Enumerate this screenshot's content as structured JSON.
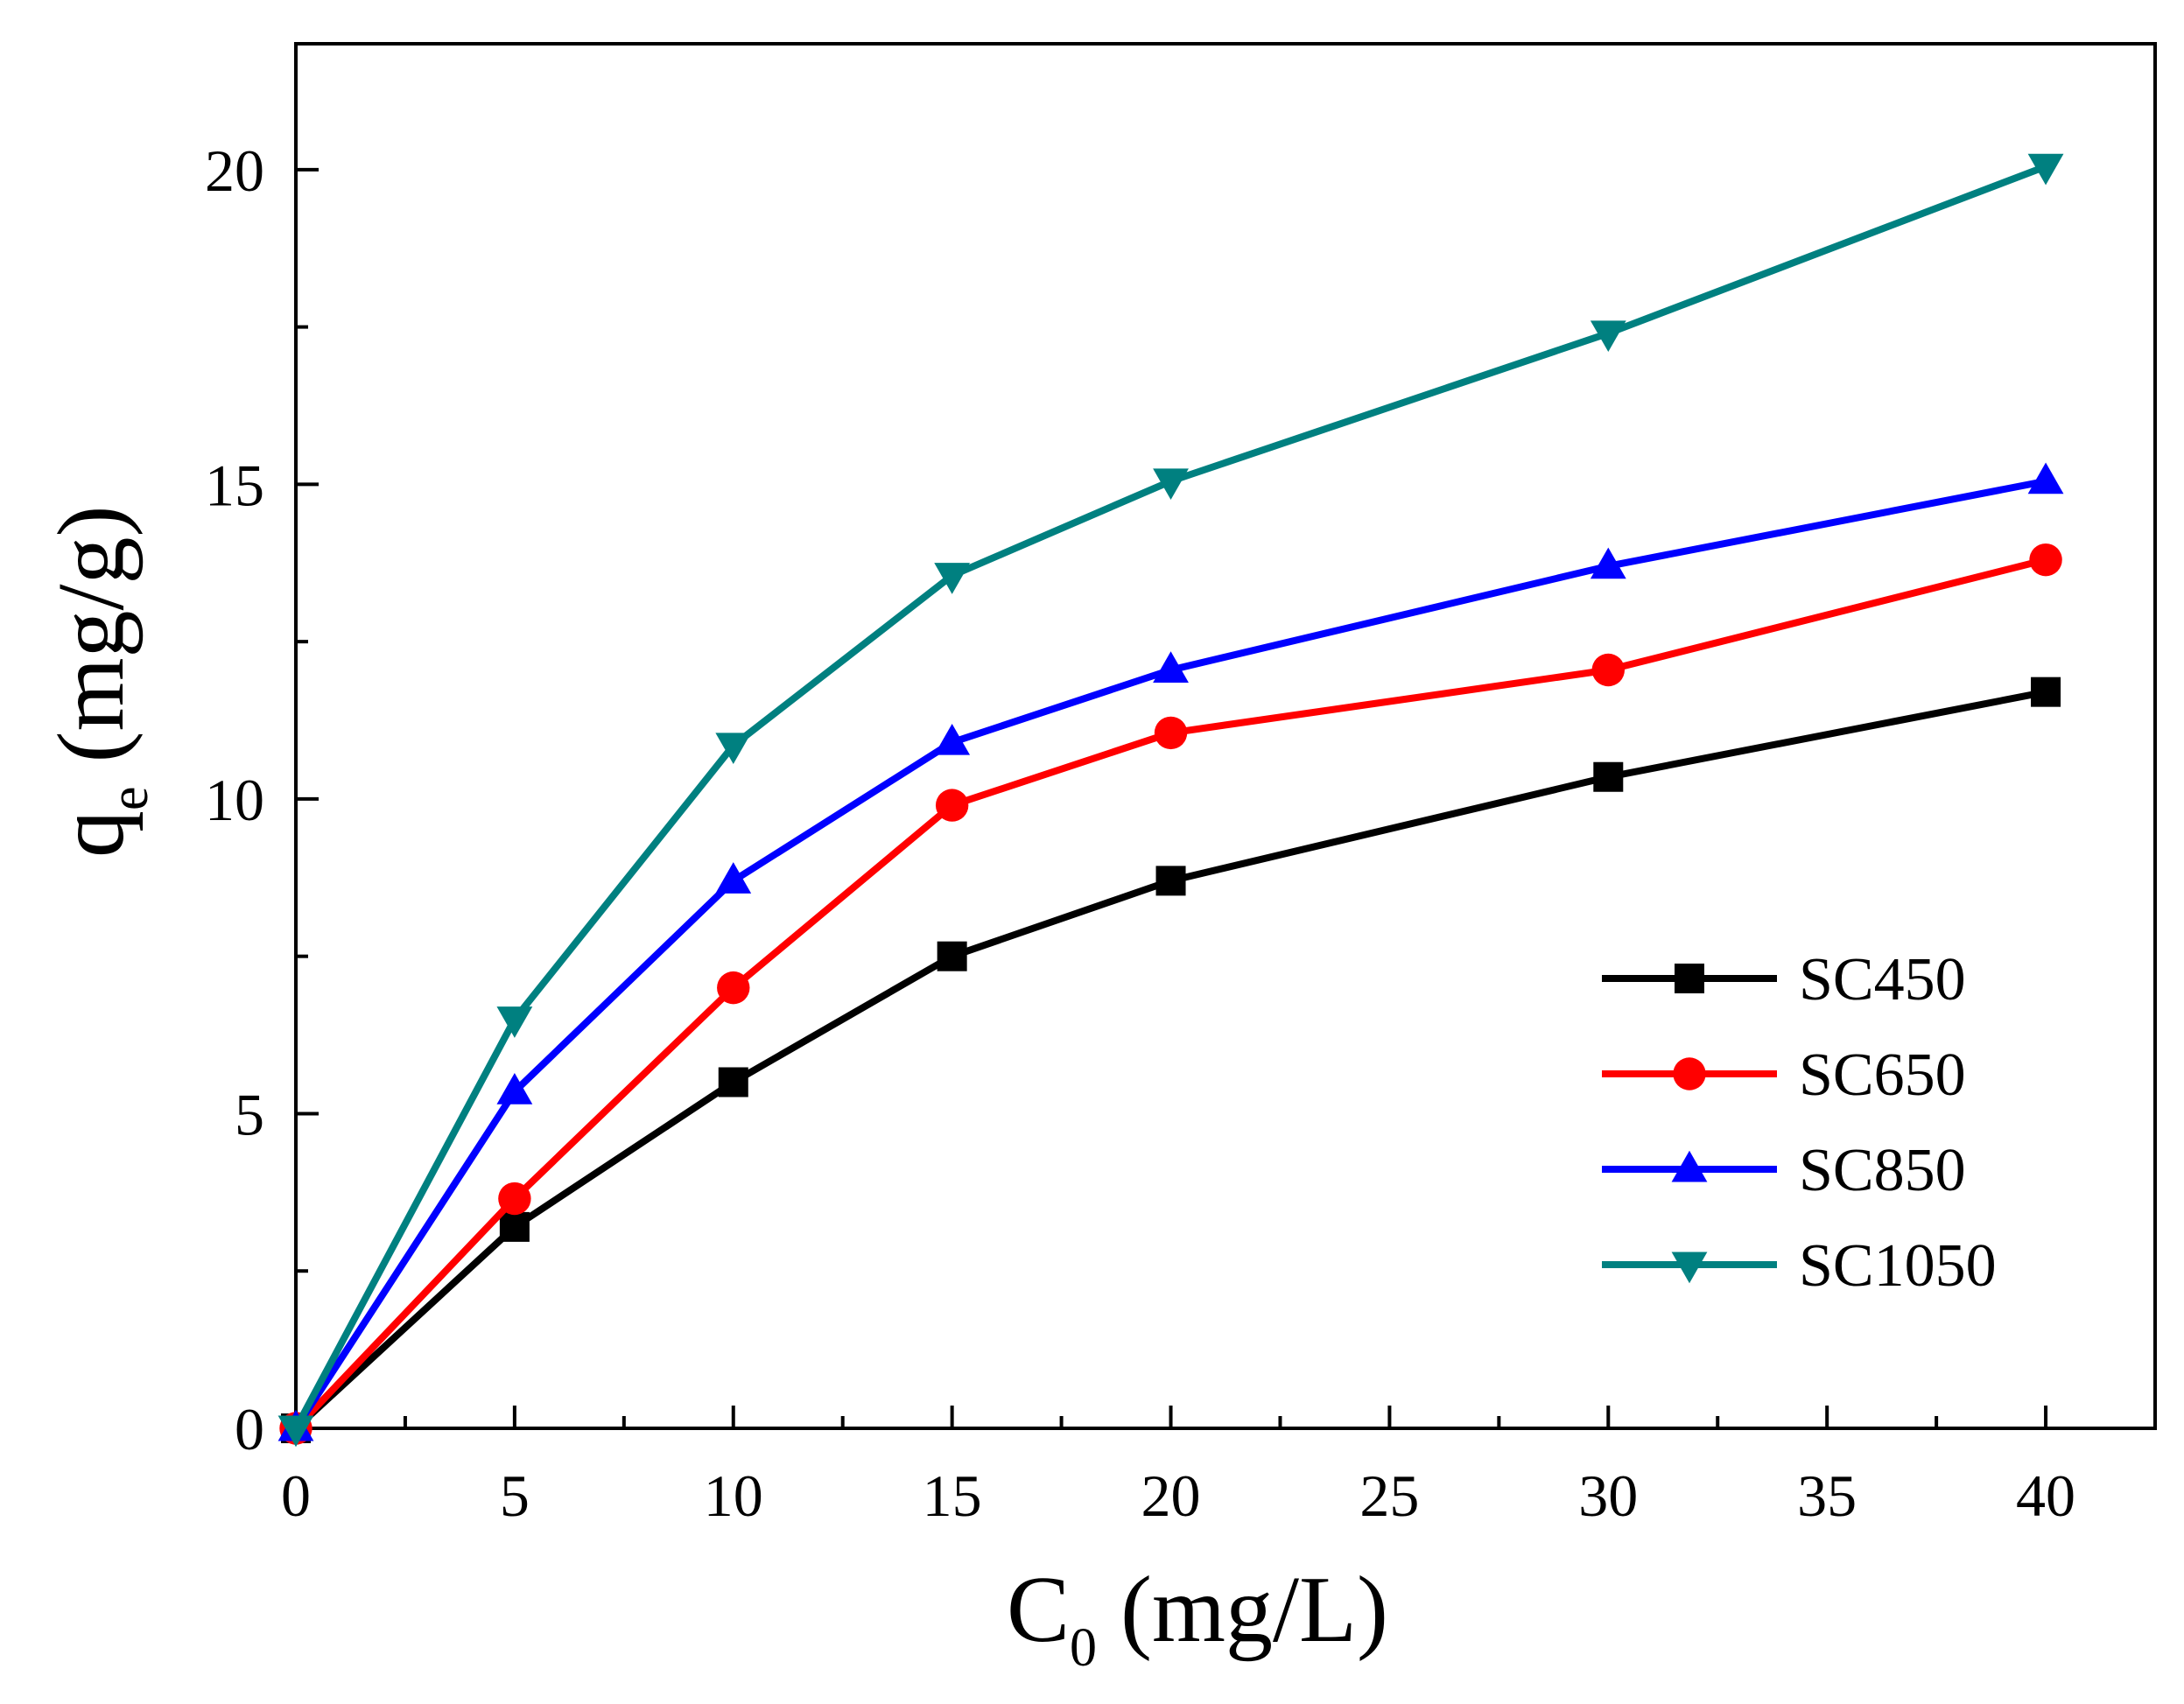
{
  "chart_data": {
    "type": "line",
    "title": "",
    "xlabel": {
      "main": "C",
      "sub": "0",
      "unit": " (mg/L)"
    },
    "ylabel": {
      "main": "q",
      "sub": "e",
      "unit": " (mg/g)"
    },
    "xlim": [
      0,
      42.5
    ],
    "ylim": [
      0,
      22
    ],
    "xticks": [
      0,
      5,
      10,
      15,
      20,
      25,
      30,
      35,
      40
    ],
    "yticks": [
      0,
      5,
      10,
      15,
      20
    ],
    "xtick_labels": [
      "0",
      "5",
      "10",
      "15",
      "20",
      "25",
      "30",
      "35",
      "40"
    ],
    "ytick_labels": [
      "0",
      "5",
      "10",
      "15",
      "20"
    ],
    "x": [
      0,
      5,
      10,
      15,
      20,
      30,
      40
    ],
    "legend_position": "bottom-right",
    "series": [
      {
        "name": "SC450",
        "color": "#000000",
        "marker": "square",
        "values": [
          0,
          3.2,
          5.5,
          7.5,
          8.7,
          10.35,
          11.7
        ]
      },
      {
        "name": "SC650",
        "color": "#ff0000",
        "marker": "circle",
        "values": [
          0,
          3.65,
          7.0,
          9.9,
          11.05,
          12.05,
          13.8
        ]
      },
      {
        "name": "SC850",
        "color": "#0000ff",
        "marker": "triangle-up",
        "values": [
          0,
          5.35,
          8.7,
          10.9,
          12.05,
          13.7,
          15.05
        ]
      },
      {
        "name": "SC1050",
        "color": "#008080",
        "marker": "triangle-down",
        "values": [
          0,
          6.5,
          10.85,
          13.55,
          15.05,
          17.4,
          20.05
        ]
      }
    ]
  }
}
